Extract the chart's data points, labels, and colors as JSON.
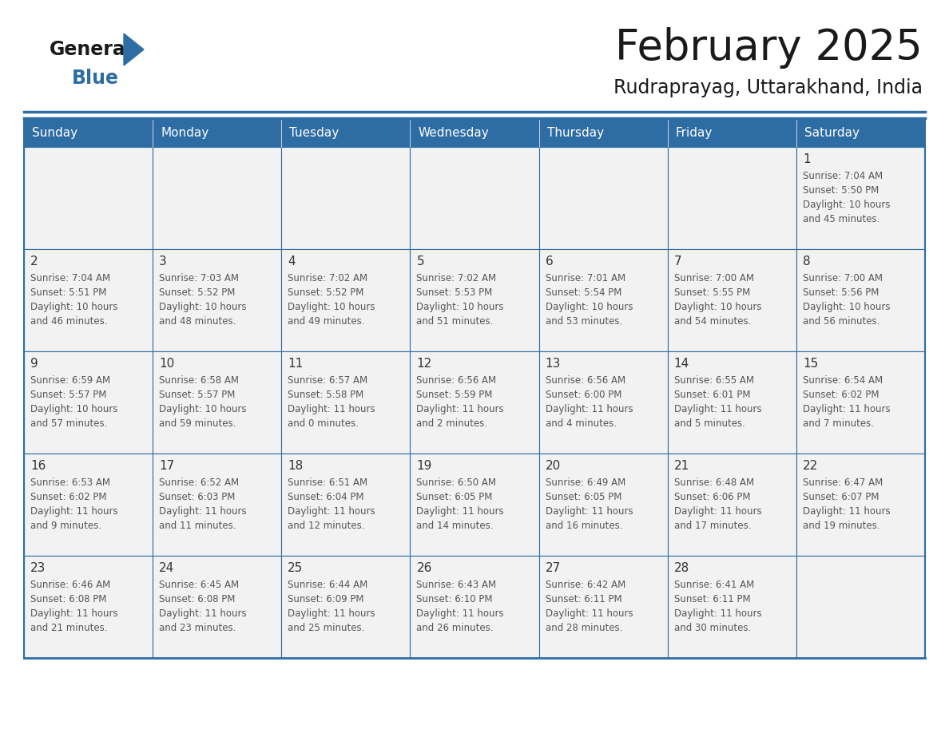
{
  "title": "February 2025",
  "subtitle": "Rudraprayag, Uttarakhand, India",
  "header_bg": "#2E6DA4",
  "header_text": "#FFFFFF",
  "cell_bg": "#F2F2F2",
  "border_color": "#2E6DA4",
  "text_color": "#333333",
  "days_of_week": [
    "Sunday",
    "Monday",
    "Tuesday",
    "Wednesday",
    "Thursday",
    "Friday",
    "Saturday"
  ],
  "calendar_data": [
    [
      null,
      null,
      null,
      null,
      null,
      null,
      {
        "day": "1",
        "sunrise": "7:04 AM",
        "sunset": "5:50 PM",
        "daylight1": "10 hours",
        "daylight2": "and 45 minutes."
      }
    ],
    [
      {
        "day": "2",
        "sunrise": "7:04 AM",
        "sunset": "5:51 PM",
        "daylight1": "10 hours",
        "daylight2": "and 46 minutes."
      },
      {
        "day": "3",
        "sunrise": "7:03 AM",
        "sunset": "5:52 PM",
        "daylight1": "10 hours",
        "daylight2": "and 48 minutes."
      },
      {
        "day": "4",
        "sunrise": "7:02 AM",
        "sunset": "5:52 PM",
        "daylight1": "10 hours",
        "daylight2": "and 49 minutes."
      },
      {
        "day": "5",
        "sunrise": "7:02 AM",
        "sunset": "5:53 PM",
        "daylight1": "10 hours",
        "daylight2": "and 51 minutes."
      },
      {
        "day": "6",
        "sunrise": "7:01 AM",
        "sunset": "5:54 PM",
        "daylight1": "10 hours",
        "daylight2": "and 53 minutes."
      },
      {
        "day": "7",
        "sunrise": "7:00 AM",
        "sunset": "5:55 PM",
        "daylight1": "10 hours",
        "daylight2": "and 54 minutes."
      },
      {
        "day": "8",
        "sunrise": "7:00 AM",
        "sunset": "5:56 PM",
        "daylight1": "10 hours",
        "daylight2": "and 56 minutes."
      }
    ],
    [
      {
        "day": "9",
        "sunrise": "6:59 AM",
        "sunset": "5:57 PM",
        "daylight1": "10 hours",
        "daylight2": "and 57 minutes."
      },
      {
        "day": "10",
        "sunrise": "6:58 AM",
        "sunset": "5:57 PM",
        "daylight1": "10 hours",
        "daylight2": "and 59 minutes."
      },
      {
        "day": "11",
        "sunrise": "6:57 AM",
        "sunset": "5:58 PM",
        "daylight1": "11 hours",
        "daylight2": "and 0 minutes."
      },
      {
        "day": "12",
        "sunrise": "6:56 AM",
        "sunset": "5:59 PM",
        "daylight1": "11 hours",
        "daylight2": "and 2 minutes."
      },
      {
        "day": "13",
        "sunrise": "6:56 AM",
        "sunset": "6:00 PM",
        "daylight1": "11 hours",
        "daylight2": "and 4 minutes."
      },
      {
        "day": "14",
        "sunrise": "6:55 AM",
        "sunset": "6:01 PM",
        "daylight1": "11 hours",
        "daylight2": "and 5 minutes."
      },
      {
        "day": "15",
        "sunrise": "6:54 AM",
        "sunset": "6:02 PM",
        "daylight1": "11 hours",
        "daylight2": "and 7 minutes."
      }
    ],
    [
      {
        "day": "16",
        "sunrise": "6:53 AM",
        "sunset": "6:02 PM",
        "daylight1": "11 hours",
        "daylight2": "and 9 minutes."
      },
      {
        "day": "17",
        "sunrise": "6:52 AM",
        "sunset": "6:03 PM",
        "daylight1": "11 hours",
        "daylight2": "and 11 minutes."
      },
      {
        "day": "18",
        "sunrise": "6:51 AM",
        "sunset": "6:04 PM",
        "daylight1": "11 hours",
        "daylight2": "and 12 minutes."
      },
      {
        "day": "19",
        "sunrise": "6:50 AM",
        "sunset": "6:05 PM",
        "daylight1": "11 hours",
        "daylight2": "and 14 minutes."
      },
      {
        "day": "20",
        "sunrise": "6:49 AM",
        "sunset": "6:05 PM",
        "daylight1": "11 hours",
        "daylight2": "and 16 minutes."
      },
      {
        "day": "21",
        "sunrise": "6:48 AM",
        "sunset": "6:06 PM",
        "daylight1": "11 hours",
        "daylight2": "and 17 minutes."
      },
      {
        "day": "22",
        "sunrise": "6:47 AM",
        "sunset": "6:07 PM",
        "daylight1": "11 hours",
        "daylight2": "and 19 minutes."
      }
    ],
    [
      {
        "day": "23",
        "sunrise": "6:46 AM",
        "sunset": "6:08 PM",
        "daylight1": "11 hours",
        "daylight2": "and 21 minutes."
      },
      {
        "day": "24",
        "sunrise": "6:45 AM",
        "sunset": "6:08 PM",
        "daylight1": "11 hours",
        "daylight2": "and 23 minutes."
      },
      {
        "day": "25",
        "sunrise": "6:44 AM",
        "sunset": "6:09 PM",
        "daylight1": "11 hours",
        "daylight2": "and 25 minutes."
      },
      {
        "day": "26",
        "sunrise": "6:43 AM",
        "sunset": "6:10 PM",
        "daylight1": "11 hours",
        "daylight2": "and 26 minutes."
      },
      {
        "day": "27",
        "sunrise": "6:42 AM",
        "sunset": "6:11 PM",
        "daylight1": "11 hours",
        "daylight2": "and 28 minutes."
      },
      {
        "day": "28",
        "sunrise": "6:41 AM",
        "sunset": "6:11 PM",
        "daylight1": "11 hours",
        "daylight2": "and 30 minutes."
      },
      null
    ]
  ],
  "logo_general_color": "#1a1a1a",
  "logo_blue_color": "#2E6DA4",
  "logo_triangle_color": "#2E6DA4",
  "title_color": "#1a1a1a",
  "subtitle_color": "#1a1a1a"
}
